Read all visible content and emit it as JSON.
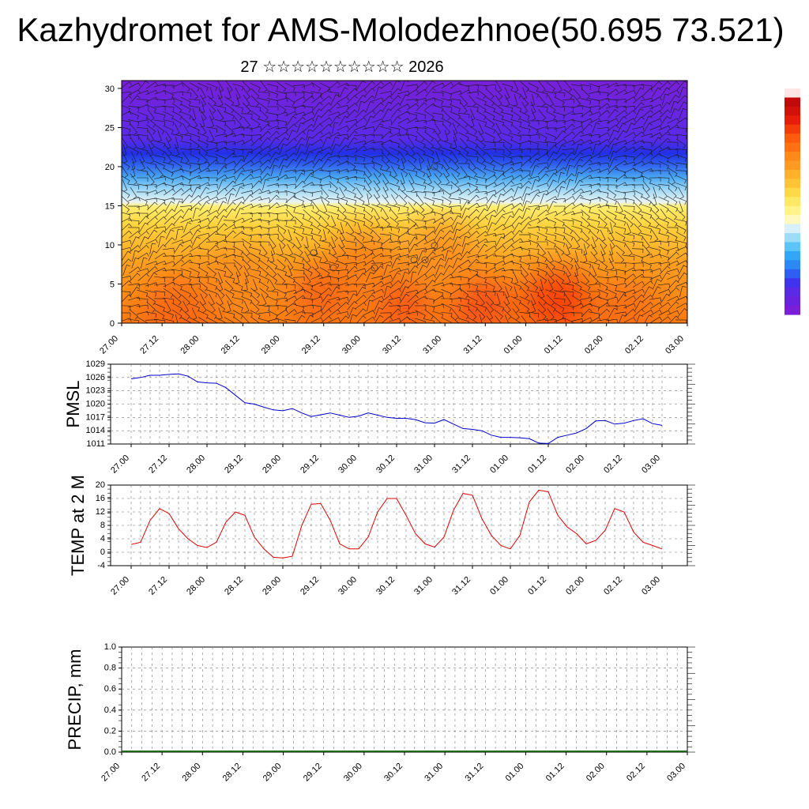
{
  "header": {
    "title": "Kazhydromet for AMS-Molodezhnoe(50.695 73.521)",
    "subtitle": "27 ☆☆☆☆☆☆☆☆☆☆ 2026"
  },
  "chart_data": [
    {
      "type": "heatmap",
      "name": "vertical-cross-section",
      "xlabel": "",
      "ylabel": "",
      "x_ticks": [
        "27.00",
        "27.12",
        "28.00",
        "28.12",
        "29.00",
        "29.12",
        "30.00",
        "30.12",
        "31.00",
        "31.12",
        "01.00",
        "01.12",
        "02.00",
        "02.12",
        "03.00"
      ],
      "y_ticks": [
        "0",
        "5",
        "10",
        "15",
        "20",
        "25",
        "30"
      ],
      "ylim": [
        0,
        31
      ],
      "colorbar_colors": [
        "#7a1fd6",
        "#5a2ae8",
        "#3b3cf2",
        "#2f6cf5",
        "#33a7f5",
        "#79d3f7",
        "#d7f0fb",
        "#fff38a",
        "#ffd84a",
        "#ffb12a",
        "#ff8a1a",
        "#ff5a10",
        "#e81c0a",
        "#c30a0a",
        "#ffffff"
      ],
      "colors": {
        "violet": "#7a1fd6",
        "blue": "#2730ea",
        "light_blue": "#b4e4fa",
        "yellow": "#ffe866",
        "orange": "#ff9a22",
        "red": "#ff3d0a"
      },
      "barbs": true
    },
    {
      "type": "line",
      "name": "pmsl",
      "ylabel": "PMSL",
      "ylim": [
        1011,
        1029
      ],
      "y_ticks": [
        "1011",
        "1014",
        "1017",
        "1020",
        "1023",
        "1026",
        "1029"
      ],
      "x_ticks": [
        "27.00",
        "27.12",
        "28.00",
        "28.12",
        "29.00",
        "29.12",
        "30.00",
        "30.12",
        "31.00",
        "31.12",
        "01.00",
        "01.12",
        "02.00",
        "02.12",
        "03.00"
      ],
      "color": "#0000cc",
      "x": [
        0,
        1,
        2,
        3,
        4,
        5,
        6,
        7,
        8,
        9,
        10,
        11,
        12,
        13,
        14,
        15,
        16,
        17,
        18,
        19,
        20,
        21,
        22,
        23,
        24,
        25,
        26,
        27,
        28,
        29,
        30,
        31,
        32,
        33,
        34,
        35,
        36,
        37,
        38,
        39,
        40,
        41,
        42,
        43,
        44,
        45,
        46,
        47,
        48,
        49,
        50,
        51,
        52,
        53,
        54,
        55,
        56
      ],
      "values": [
        1025.7,
        1026.0,
        1026.5,
        1026.5,
        1026.7,
        1026.8,
        1026.3,
        1025.0,
        1024.8,
        1024.7,
        1023.7,
        1022.0,
        1020.3,
        1020.0,
        1019.3,
        1018.7,
        1018.5,
        1019.0,
        1018.0,
        1017.2,
        1017.6,
        1018.0,
        1017.5,
        1017.0,
        1017.3,
        1018.0,
        1017.5,
        1017.0,
        1016.8,
        1016.8,
        1016.5,
        1015.8,
        1015.7,
        1016.5,
        1015.5,
        1014.5,
        1014.3,
        1014.0,
        1013.0,
        1012.5,
        1012.5,
        1012.4,
        1012.2,
        1011.2,
        1011.1,
        1012.5,
        1013.0,
        1013.5,
        1014.5,
        1016.2,
        1016.3,
        1015.5,
        1015.7,
        1016.3,
        1016.7,
        1015.6,
        1015.2
      ]
    },
    {
      "type": "line",
      "name": "temp2m",
      "ylabel": "TEMP at 2 M",
      "ylim": [
        -4,
        20
      ],
      "y_ticks": [
        "-4",
        "0",
        "4",
        "8",
        "12",
        "16",
        "20"
      ],
      "x_ticks": [
        "27.00",
        "27.12",
        "28.00",
        "28.12",
        "29.00",
        "29.12",
        "30.00",
        "30.12",
        "31.00",
        "31.12",
        "01.00",
        "01.12",
        "02.00",
        "02.12",
        "03.00"
      ],
      "color": "#dd0000",
      "x": [
        0,
        1,
        2,
        3,
        4,
        5,
        6,
        7,
        8,
        9,
        10,
        11,
        12,
        13,
        14,
        15,
        16,
        17,
        18,
        19,
        20,
        21,
        22,
        23,
        24,
        25,
        26,
        27,
        28,
        29,
        30,
        31,
        32,
        33,
        34,
        35,
        36,
        37,
        38,
        39,
        40,
        41,
        42,
        43,
        44,
        45,
        46,
        47,
        48,
        49,
        50,
        51,
        52,
        53,
        54,
        55,
        56
      ],
      "values": [
        2.3,
        3.0,
        9.5,
        13.0,
        11.5,
        7.0,
        4.0,
        2.0,
        1.4,
        3.0,
        9.0,
        12.0,
        11.0,
        4.5,
        1.0,
        -1.5,
        -1.7,
        -1.2,
        8.0,
        14.3,
        14.5,
        9.5,
        2.5,
        1.0,
        1.0,
        4.5,
        12.0,
        16.0,
        16.0,
        11.0,
        5.5,
        2.5,
        1.5,
        4.5,
        12.5,
        17.5,
        17.0,
        10.0,
        5.0,
        2.0,
        1.0,
        5.0,
        15.0,
        18.5,
        18.0,
        11.0,
        7.5,
        5.5,
        2.5,
        3.5,
        6.5,
        13.0,
        12.0,
        6.0,
        3.0,
        2.0,
        1.0
      ]
    },
    {
      "type": "bar",
      "name": "precip",
      "ylabel": "PRECIP, mm",
      "ylim": [
        0,
        1.0
      ],
      "y_ticks": [
        "0.0",
        "0.2",
        "0.4",
        "0.6",
        "0.8",
        "1.0"
      ],
      "x_ticks": [
        "27.00",
        "27.12",
        "28.00",
        "28.12",
        "29.00",
        "29.12",
        "30.00",
        "30.12",
        "31.00",
        "31.12",
        "01.00",
        "01.12",
        "02.00",
        "02.12",
        "03.00"
      ],
      "values": [
        0,
        0,
        0,
        0,
        0,
        0,
        0,
        0,
        0,
        0,
        0,
        0,
        0,
        0,
        0,
        0,
        0,
        0,
        0,
        0,
        0,
        0,
        0,
        0,
        0,
        0,
        0,
        0,
        0,
        0,
        0,
        0,
        0,
        0,
        0,
        0,
        0,
        0,
        0,
        0,
        0,
        0,
        0,
        0,
        0,
        0,
        0,
        0,
        0,
        0,
        0,
        0,
        0,
        0,
        0,
        0,
        0
      ]
    }
  ]
}
